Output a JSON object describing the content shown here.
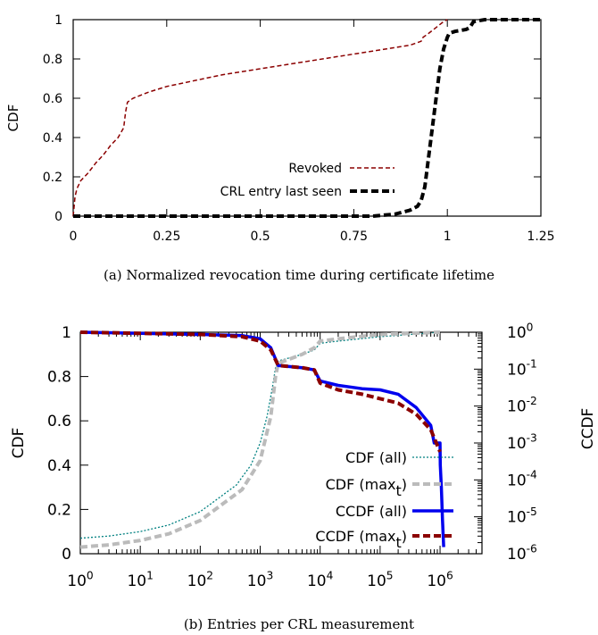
{
  "chart_data": [
    {
      "type": "line",
      "caption": "(a)  Normalized revocation time during certificate lifetime",
      "xlabel": "",
      "ylabel": "CDF",
      "xlim": [
        0,
        1.25
      ],
      "ylim": [
        0,
        1
      ],
      "x_ticks": [
        "0",
        "0.25",
        "0.5",
        "0.75",
        "1",
        "1.25"
      ],
      "y_ticks": [
        "0",
        "0.2",
        "0.4",
        "0.6",
        "0.8",
        "1"
      ],
      "legend_position": "bottom-right",
      "series": [
        {
          "name": "Revoked",
          "color": "#8b0000",
          "style": "dashed",
          "x": [
            0,
            0.005,
            0.01,
            0.02,
            0.04,
            0.06,
            0.08,
            0.1,
            0.12,
            0.135,
            0.14,
            0.145,
            0.16,
            0.2,
            0.25,
            0.3,
            0.4,
            0.5,
            0.6,
            0.7,
            0.8,
            0.9,
            0.93,
            0.935,
            0.95,
            0.97,
            0.99,
            1.0
          ],
          "y": [
            0,
            0.1,
            0.14,
            0.18,
            0.22,
            0.27,
            0.31,
            0.36,
            0.4,
            0.45,
            0.53,
            0.58,
            0.6,
            0.63,
            0.66,
            0.68,
            0.72,
            0.75,
            0.78,
            0.81,
            0.84,
            0.87,
            0.89,
            0.91,
            0.93,
            0.96,
            0.99,
            1.0
          ]
        },
        {
          "name": "CRL entry last seen",
          "color": "#000000",
          "style": "thick-dashed",
          "x": [
            0,
            0.5,
            0.8,
            0.83,
            0.86,
            0.9,
            0.92,
            0.93,
            0.94,
            0.95,
            0.96,
            0.97,
            0.98,
            0.99,
            1.0,
            1.005,
            1.02,
            1.05,
            1.06,
            1.07,
            1.1,
            1.2,
            1.25
          ],
          "y": [
            0,
            0,
            0,
            0.005,
            0.01,
            0.03,
            0.05,
            0.08,
            0.15,
            0.3,
            0.45,
            0.6,
            0.75,
            0.85,
            0.91,
            0.93,
            0.94,
            0.95,
            0.96,
            0.99,
            1.0,
            1.0,
            1.0
          ]
        }
      ]
    },
    {
      "type": "line",
      "caption": "(b)  Entries per CRL measurement",
      "xlabel": "",
      "ylabel": "CDF",
      "y2label": "CCDF",
      "xscale": "log",
      "xlim": [
        1,
        5000000
      ],
      "ylim": [
        0,
        1
      ],
      "y2lim": [
        1e-06,
        1
      ],
      "x_ticks": [
        {
          "base": "10",
          "exp": "0"
        },
        {
          "base": "10",
          "exp": "1"
        },
        {
          "base": "10",
          "exp": "2"
        },
        {
          "base": "10",
          "exp": "3"
        },
        {
          "base": "10",
          "exp": "4"
        },
        {
          "base": "10",
          "exp": "5"
        },
        {
          "base": "10",
          "exp": "6"
        }
      ],
      "y_ticks": [
        "0",
        "0.2",
        "0.4",
        "0.6",
        "0.8",
        "1"
      ],
      "y2_ticks": [
        {
          "base": "10",
          "exp": "0"
        },
        {
          "base": "10",
          "exp": "-1"
        },
        {
          "base": "10",
          "exp": "-2"
        },
        {
          "base": "10",
          "exp": "-3"
        },
        {
          "base": "10",
          "exp": "-4"
        },
        {
          "base": "10",
          "exp": "-5"
        },
        {
          "base": "10",
          "exp": "-6"
        }
      ],
      "legend_position": "bottom-right",
      "series": [
        {
          "name": "CDF (all)",
          "name_sub": "",
          "name_tail": "",
          "color": "#008080",
          "style": "dotted",
          "axis": "left",
          "x": [
            1,
            3,
            10,
            30,
            100,
            200,
            400,
            700,
            1000,
            1300,
            1600,
            1800,
            2000,
            5000,
            8000,
            10000,
            20000,
            100000,
            1000000
          ],
          "y": [
            0.07,
            0.08,
            0.1,
            0.13,
            0.19,
            0.25,
            0.31,
            0.4,
            0.5,
            0.62,
            0.75,
            0.84,
            0.87,
            0.9,
            0.92,
            0.95,
            0.96,
            0.98,
            1.0
          ]
        },
        {
          "name": "CDF (max",
          "name_sub": "t",
          "name_tail": ")",
          "color": "#bbbbbb",
          "style": "thick-dashed",
          "axis": "left",
          "x": [
            1,
            3,
            10,
            30,
            100,
            200,
            500,
            1000,
            1500,
            1800,
            2000,
            5000,
            8000,
            10000,
            20000,
            100000,
            1000000
          ],
          "y": [
            0.03,
            0.04,
            0.06,
            0.09,
            0.15,
            0.21,
            0.29,
            0.42,
            0.62,
            0.8,
            0.86,
            0.9,
            0.93,
            0.96,
            0.97,
            0.99,
            1.0
          ]
        },
        {
          "name": "CCDF (all)",
          "name_sub": "",
          "name_tail": "",
          "color": "#0000ee",
          "style": "thick-solid",
          "axis": "left",
          "x": [
            1,
            10,
            100,
            500,
            1000,
            1500,
            2000,
            5000,
            8000,
            10000,
            20000,
            50000,
            100000,
            200000,
            400000,
            700000,
            800000,
            1000000,
            1010000,
            1050000,
            1100000,
            1150000
          ],
          "y": [
            1.0,
            0.995,
            0.99,
            0.985,
            0.97,
            0.93,
            0.85,
            0.84,
            0.83,
            0.78,
            0.76,
            0.745,
            0.74,
            0.72,
            0.66,
            0.58,
            0.5,
            0.5,
            0.4,
            0.3,
            0.15,
            0.03
          ]
        },
        {
          "name": "CCDF (max",
          "name_sub": "t",
          "name_tail": ")",
          "color": "#8b0000",
          "style": "thick-dashed",
          "axis": "left",
          "x": [
            1,
            10,
            100,
            500,
            1000,
            1500,
            2000,
            5000,
            8000,
            10000,
            20000,
            50000,
            100000,
            200000,
            400000,
            700000,
            1000000
          ],
          "y": [
            1.0,
            0.995,
            0.99,
            0.98,
            0.96,
            0.92,
            0.85,
            0.84,
            0.83,
            0.77,
            0.74,
            0.72,
            0.7,
            0.68,
            0.63,
            0.56,
            0.46
          ]
        }
      ]
    }
  ]
}
